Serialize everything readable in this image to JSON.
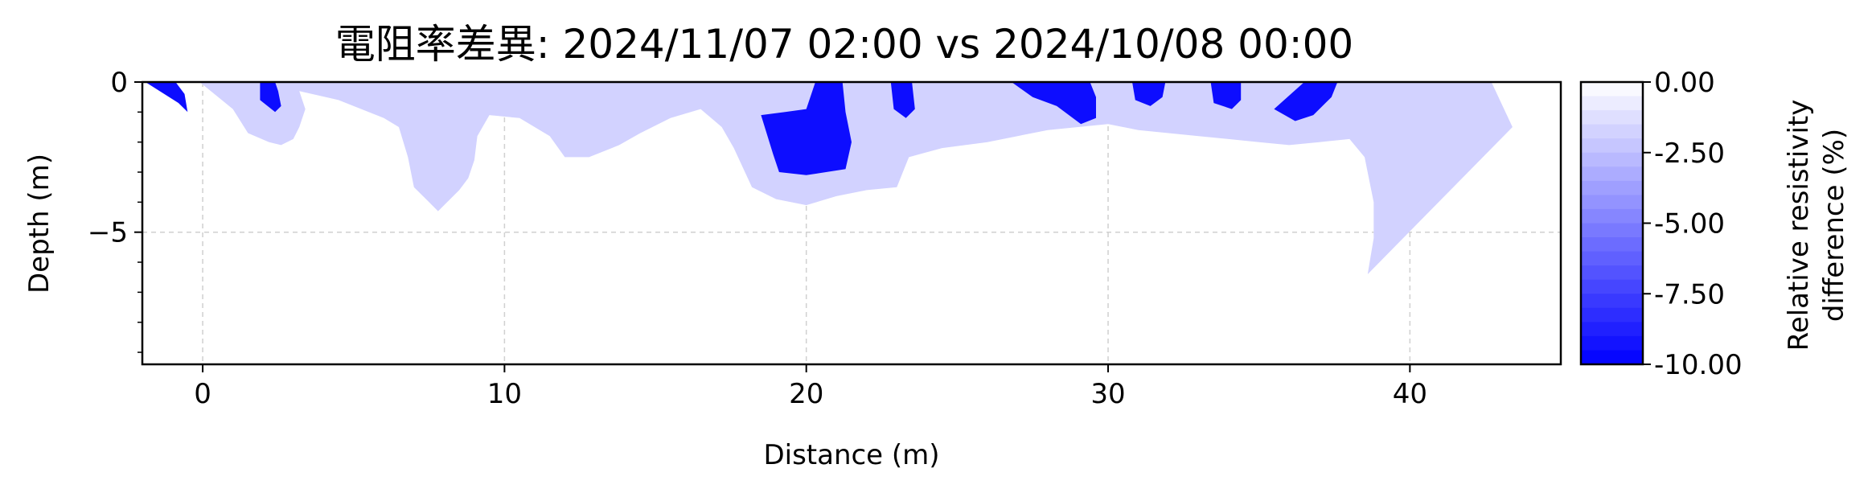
{
  "chart_data": {
    "type": "contour",
    "title": "電阻率差異: 2024/11/07 02:00 vs 2024/10/08 00:00",
    "xlabel": "Distance (m)",
    "ylabel": "Depth (m)",
    "xlim": [
      -2,
      45
    ],
    "ylim": [
      -9.4,
      0
    ],
    "xticks": [
      "0",
      "10",
      "20",
      "30",
      "40"
    ],
    "yticks": [
      "0",
      "−5"
    ],
    "grid": true,
    "colorbar": {
      "label_line1": "Relative resistivity",
      "label_line2": "difference (%)",
      "range": [
        -10,
        0
      ],
      "ticks": [
        "0.00",
        "-2.50",
        "-5.00",
        "-7.50",
        "-10.00"
      ],
      "colors": {
        "low": "#0000ff",
        "high": "#ffffff"
      }
    },
    "regions": [
      {
        "name": "light-anomaly",
        "level": -1.5,
        "color": "#d2d2ff",
        "polygon": [
          [
            -0.1,
            0
          ],
          [
            1,
            -0.9
          ],
          [
            1.5,
            -1.7
          ],
          [
            2.2,
            -2.0
          ],
          [
            2.6,
            -2.1
          ],
          [
            3,
            -1.9
          ],
          [
            3.2,
            -1.5
          ],
          [
            3.4,
            -0.9
          ],
          [
            3.2,
            -0.3
          ],
          [
            4.5,
            -0.6
          ],
          [
            6,
            -1.2
          ],
          [
            6.5,
            -1.5
          ],
          [
            6.8,
            -2.5
          ],
          [
            7,
            -3.5
          ],
          [
            7.5,
            -4.0
          ],
          [
            7.8,
            -4.3
          ],
          [
            8.5,
            -3.6
          ],
          [
            8.8,
            -3.2
          ],
          [
            9,
            -2.6
          ],
          [
            9.1,
            -1.8
          ],
          [
            9.5,
            -1.1
          ],
          [
            10.5,
            -1.2
          ],
          [
            11.5,
            -1.8
          ],
          [
            12,
            -2.5
          ],
          [
            12.8,
            -2.5
          ],
          [
            13.8,
            -2.1
          ],
          [
            14.5,
            -1.7
          ],
          [
            15.5,
            -1.2
          ],
          [
            16.5,
            -0.9
          ],
          [
            17.2,
            -1.5
          ],
          [
            17.6,
            -2.2
          ],
          [
            18.2,
            -3.5
          ],
          [
            19,
            -3.9
          ],
          [
            20,
            -4.1
          ],
          [
            21,
            -3.8
          ],
          [
            22,
            -3.6
          ],
          [
            23,
            -3.5
          ],
          [
            23.2,
            -3.0
          ],
          [
            23.4,
            -2.5
          ],
          [
            24.5,
            -2.2
          ],
          [
            26,
            -2.0
          ],
          [
            27,
            -1.8
          ],
          [
            28,
            -1.6
          ],
          [
            30,
            -1.4
          ],
          [
            31,
            -1.6
          ],
          [
            33,
            -1.8
          ],
          [
            35,
            -2.0
          ],
          [
            36,
            -2.1
          ],
          [
            37,
            -2.0
          ],
          [
            38,
            -1.9
          ],
          [
            38.5,
            -2.5
          ],
          [
            38.8,
            -4
          ],
          [
            38.8,
            -5.2
          ],
          [
            38.6,
            -6.4
          ],
          [
            43.4,
            -1.5
          ],
          [
            42.7,
            0
          ]
        ]
      },
      {
        "name": "dark-anomaly-a",
        "level": -10,
        "color": "#0d0dff",
        "polygon": [
          [
            -1.9,
            0
          ],
          [
            -0.8,
            -0.7
          ],
          [
            -0.5,
            -1.0
          ],
          [
            -0.6,
            -0.4
          ],
          [
            -0.9,
            0
          ]
        ]
      },
      {
        "name": "dark-anomaly-b",
        "level": -10,
        "color": "#0d0dff",
        "polygon": [
          [
            1.9,
            0
          ],
          [
            1.9,
            -0.6
          ],
          [
            2.4,
            -1.0
          ],
          [
            2.6,
            -0.8
          ],
          [
            2.5,
            -0.3
          ],
          [
            2.4,
            0
          ]
        ]
      },
      {
        "name": "dark-anomaly-c",
        "level": -10,
        "color": "#0d0dff",
        "polygon": [
          [
            18.5,
            -1.1
          ],
          [
            18.9,
            -2.4
          ],
          [
            19.1,
            -3.0
          ],
          [
            20,
            -3.1
          ],
          [
            21.3,
            -2.9
          ],
          [
            21.5,
            -2.0
          ],
          [
            21.3,
            -1.0
          ],
          [
            21.2,
            0
          ],
          [
            20.3,
            0
          ],
          [
            20,
            -0.9
          ],
          [
            19.3,
            -1.0
          ]
        ]
      },
      {
        "name": "dark-anomaly-d",
        "level": -10,
        "color": "#0d0dff",
        "polygon": [
          [
            22.8,
            0
          ],
          [
            22.9,
            -0.9
          ],
          [
            23.3,
            -1.2
          ],
          [
            23.6,
            -0.9
          ],
          [
            23.5,
            0
          ]
        ]
      },
      {
        "name": "dark-anomaly-e",
        "level": -10,
        "color": "#0d0dff",
        "polygon": [
          [
            26.8,
            0
          ],
          [
            27.5,
            -0.5
          ],
          [
            28.3,
            -0.8
          ],
          [
            29.1,
            -1.4
          ],
          [
            29.6,
            -1.2
          ],
          [
            29.6,
            -0.5
          ],
          [
            29.4,
            0
          ]
        ]
      },
      {
        "name": "dark-anomaly-f",
        "level": -10,
        "color": "#0d0dff",
        "polygon": [
          [
            30.8,
            0
          ],
          [
            30.9,
            -0.6
          ],
          [
            31.4,
            -0.8
          ],
          [
            31.8,
            -0.5
          ],
          [
            31.9,
            0
          ]
        ]
      },
      {
        "name": "dark-anomaly-g",
        "level": -10,
        "color": "#0d0dff",
        "polygon": [
          [
            33.4,
            0
          ],
          [
            33.5,
            -0.7
          ],
          [
            34.1,
            -0.9
          ],
          [
            34.4,
            -0.6
          ],
          [
            34.4,
            0
          ]
        ]
      },
      {
        "name": "dark-anomaly-h",
        "level": -10,
        "color": "#0d0dff",
        "polygon": [
          [
            35.5,
            -0.9
          ],
          [
            36.2,
            -1.3
          ],
          [
            36.8,
            -1.1
          ],
          [
            37.4,
            -0.5
          ],
          [
            37.6,
            0
          ],
          [
            36.5,
            0
          ]
        ]
      }
    ]
  }
}
